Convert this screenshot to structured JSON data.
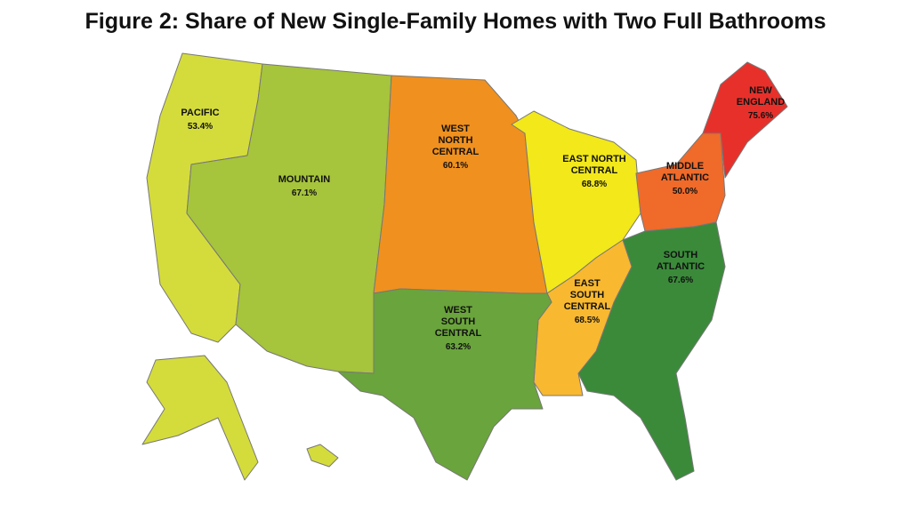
{
  "title": "Figure 2: Share of New Single-Family Homes with Two Full Bathrooms",
  "regions": [
    {
      "name_lines": [
        "PACIFIC"
      ],
      "value": 53.4,
      "value_label": "53.4%",
      "color": "#d4dc3c"
    },
    {
      "name_lines": [
        "MOUNTAIN"
      ],
      "value": 67.1,
      "value_label": "67.1%",
      "color": "#a6c43c"
    },
    {
      "name_lines": [
        "WEST",
        "NORTH",
        "CENTRAL"
      ],
      "value": 60.1,
      "value_label": "60.1%",
      "color": "#f0901e"
    },
    {
      "name_lines": [
        "EAST NORTH",
        "CENTRAL"
      ],
      "value": 68.8,
      "value_label": "68.8%",
      "color": "#f2e81a"
    },
    {
      "name_lines": [
        "MIDDLE",
        "ATLANTIC"
      ],
      "value": 50.0,
      "value_label": "50.0%",
      "color": "#f06a2a"
    },
    {
      "name_lines": [
        "NEW",
        "ENGLAND"
      ],
      "value": 75.6,
      "value_label": "75.6%",
      "color": "#e8302a"
    },
    {
      "name_lines": [
        "SOUTH",
        "ATLANTIC"
      ],
      "value": 67.6,
      "value_label": "67.6%",
      "color": "#3a8a3a"
    },
    {
      "name_lines": [
        "EAST",
        "SOUTH",
        "CENTRAL"
      ],
      "value": 68.5,
      "value_label": "68.5%",
      "color": "#f8b830"
    },
    {
      "name_lines": [
        "WEST",
        "SOUTH",
        "CENTRAL"
      ],
      "value": 63.2,
      "value_label": "63.2%",
      "color": "#6aa43c"
    }
  ]
}
